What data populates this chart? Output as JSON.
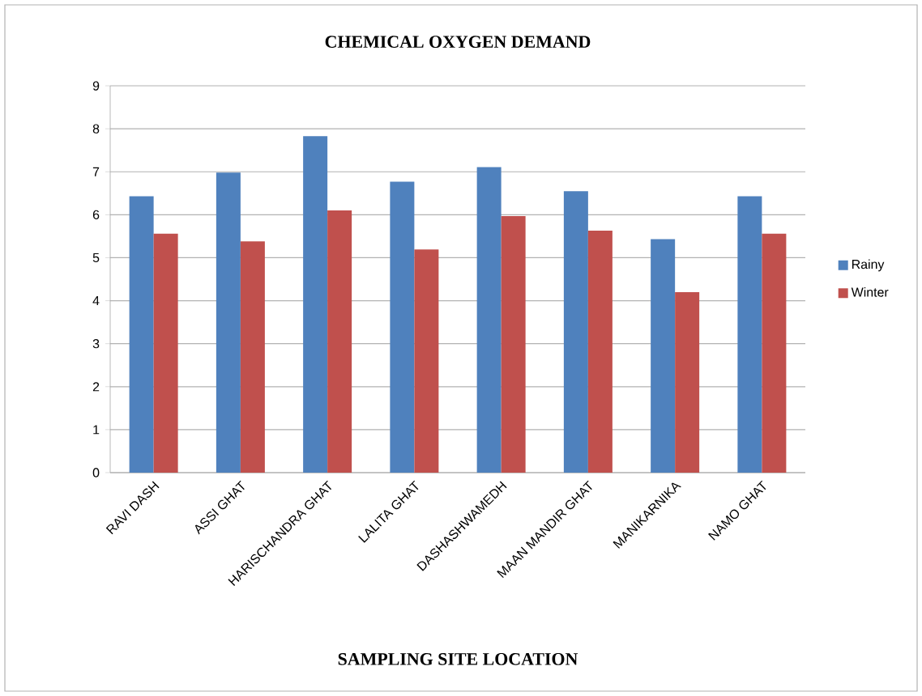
{
  "chart_data": {
    "type": "bar",
    "title": "CHEMICAL OXYGEN DEMAND",
    "xlabel": "SAMPLING SITE LOCATION",
    "categories": [
      "RAVI DASH",
      "ASSI GHAT",
      "HARISCHANDRA GHAT",
      "LALITA GHAT",
      "DASHASHWAMEDH",
      "MAAN MANDIR GHAT",
      "MANIKARNIKA",
      "NAMO GHAT"
    ],
    "series": [
      {
        "name": "Rainy",
        "color": "#4f81bd",
        "values": [
          6.43,
          6.98,
          7.83,
          6.77,
          7.11,
          6.55,
          5.43,
          6.43
        ]
      },
      {
        "name": "Winter",
        "color": "#c0504d",
        "values": [
          5.56,
          5.38,
          6.1,
          5.19,
          5.97,
          5.63,
          4.2,
          5.56
        ]
      }
    ],
    "ylim": [
      0,
      9
    ],
    "yticks": [
      0,
      1,
      2,
      3,
      4,
      5,
      6,
      7,
      8,
      9
    ],
    "grid": "y",
    "legend": "right"
  }
}
